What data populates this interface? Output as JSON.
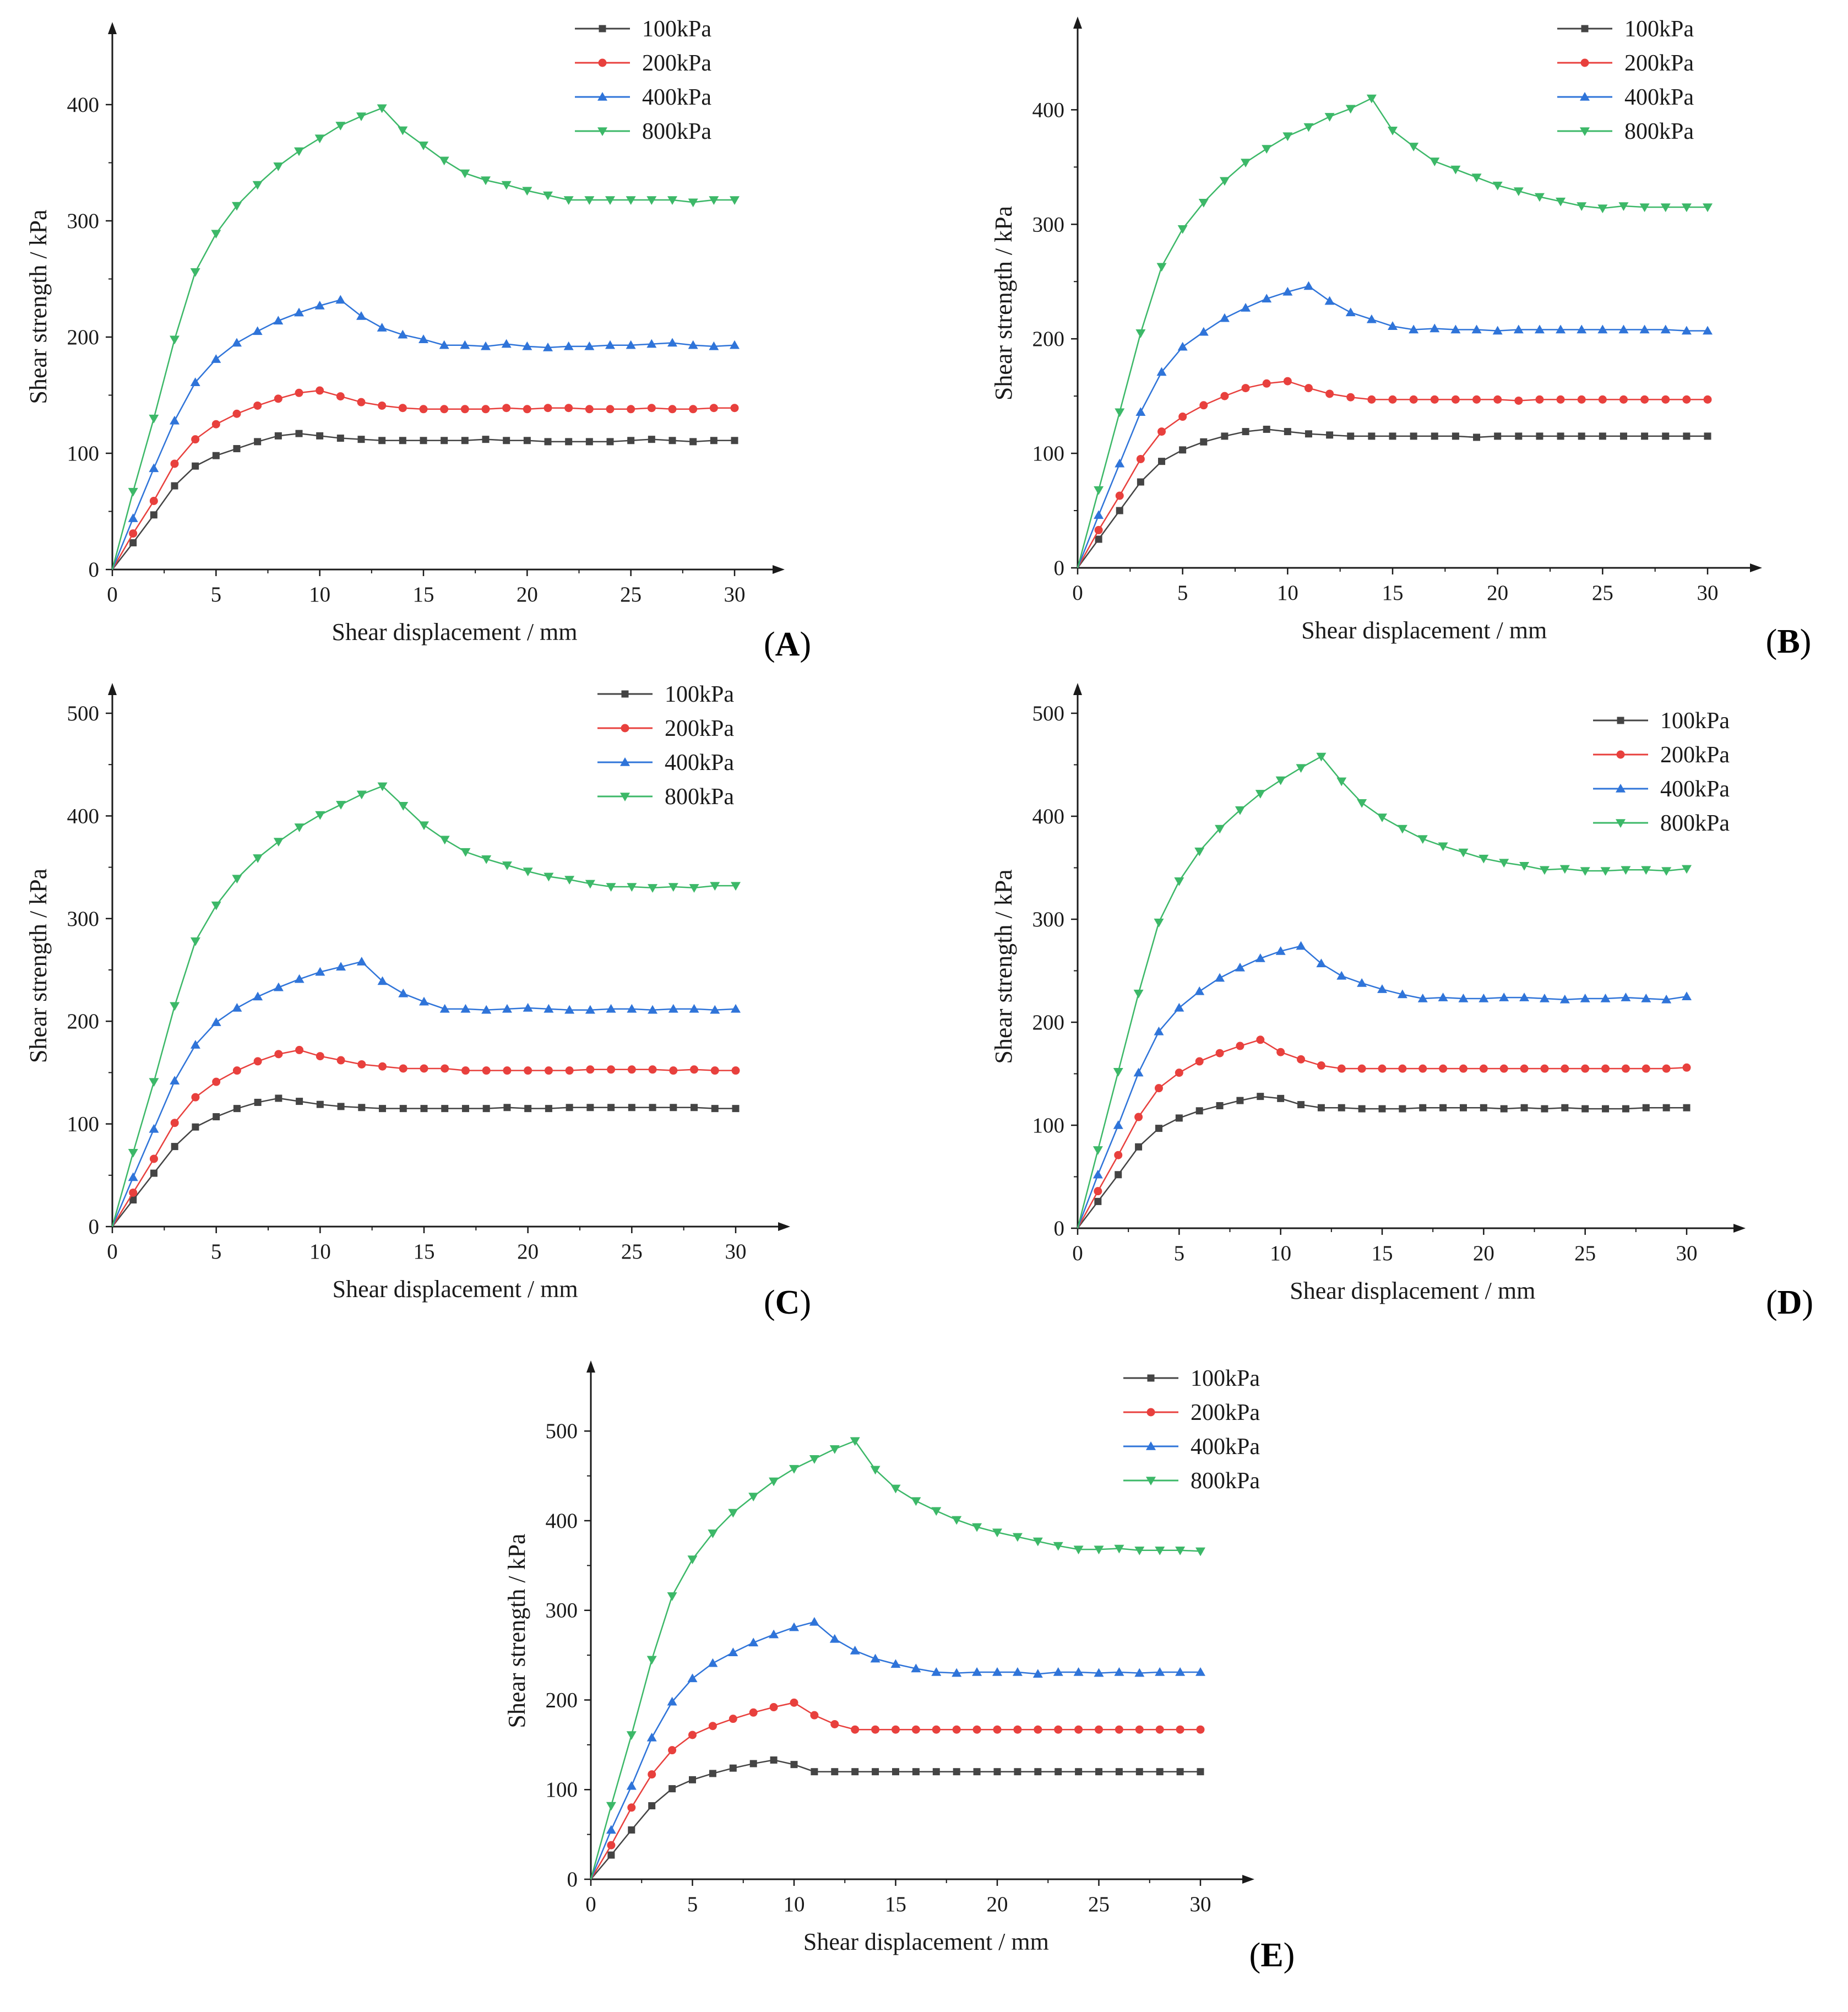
{
  "figure": {
    "series_colors": [
      "#444444",
      "#e8403d",
      "#2f74d9",
      "#3cb868"
    ],
    "series_markers": [
      "square",
      "circle",
      "triangle-up",
      "triangle-down"
    ]
  },
  "chart_data": [
    {
      "id": "A",
      "panel_label": "A",
      "type": "line",
      "xlabel": "Shear displacement / mm",
      "ylabel": "Shear strength / kPa",
      "xlim": [
        0,
        32
      ],
      "ylim": [
        0,
        445
      ],
      "xticks": [
        0,
        5,
        10,
        15,
        20,
        25,
        30
      ],
      "yticks": [
        0,
        100,
        200,
        300,
        400
      ],
      "legend_position": "top-right",
      "x": [
        0,
        1,
        2,
        3,
        4,
        5,
        6,
        7,
        8,
        9,
        10,
        11,
        12,
        13,
        14,
        15,
        16,
        17,
        18,
        19,
        20,
        21,
        22,
        23,
        24,
        25,
        26,
        27,
        28,
        29,
        30
      ],
      "series": [
        {
          "name": "100kPa",
          "values": [
            0,
            23,
            47,
            72,
            89,
            98,
            104,
            110,
            115,
            117,
            115,
            113,
            112,
            111,
            111,
            111,
            111,
            111,
            112,
            111,
            111,
            110,
            110,
            110,
            110,
            111,
            112,
            111,
            110,
            111,
            111
          ]
        },
        {
          "name": "200kPa",
          "values": [
            0,
            31,
            59,
            91,
            112,
            125,
            134,
            141,
            147,
            152,
            154,
            149,
            144,
            141,
            139,
            138,
            138,
            138,
            138,
            139,
            138,
            139,
            139,
            138,
            138,
            138,
            139,
            138,
            138,
            139,
            139
          ]
        },
        {
          "name": "400kPa",
          "values": [
            0,
            44,
            87,
            128,
            161,
            181,
            195,
            205,
            214,
            221,
            227,
            232,
            218,
            208,
            202,
            198,
            193,
            193,
            192,
            194,
            192,
            191,
            192,
            192,
            193,
            193,
            194,
            195,
            193,
            192,
            193
          ]
        },
        {
          "name": "800kPa",
          "values": [
            0,
            67,
            130,
            198,
            256,
            289,
            313,
            331,
            347,
            360,
            371,
            382,
            390,
            397,
            378,
            365,
            352,
            341,
            335,
            331,
            326,
            322,
            318,
            318,
            318,
            318,
            318,
            318,
            316,
            318,
            318
          ]
        }
      ]
    },
    {
      "id": "B",
      "panel_label": "B",
      "type": "line",
      "xlabel": "Shear displacement / mm",
      "ylabel": "Shear strength / kPa",
      "xlim": [
        0,
        32
      ],
      "ylim": [
        0,
        455
      ],
      "xticks": [
        0,
        5,
        10,
        15,
        20,
        25,
        30
      ],
      "yticks": [
        0,
        100,
        200,
        300,
        400
      ],
      "legend_position": "top-right",
      "x": [
        0,
        1,
        2,
        3,
        4,
        5,
        6,
        7,
        8,
        9,
        10,
        11,
        12,
        13,
        14,
        15,
        16,
        17,
        18,
        19,
        20,
        21,
        22,
        23,
        24,
        25,
        26,
        27,
        28,
        29,
        30
      ],
      "series": [
        {
          "name": "100kPa",
          "values": [
            0,
            25,
            50,
            75,
            93,
            103,
            110,
            115,
            119,
            121,
            119,
            117,
            116,
            115,
            115,
            115,
            115,
            115,
            115,
            114,
            115,
            115,
            115,
            115,
            115,
            115,
            115,
            115,
            115,
            115,
            115
          ]
        },
        {
          "name": "200kPa",
          "values": [
            0,
            33,
            63,
            95,
            119,
            132,
            142,
            150,
            157,
            161,
            163,
            157,
            152,
            149,
            147,
            147,
            147,
            147,
            147,
            147,
            147,
            146,
            147,
            147,
            147,
            147,
            147,
            147,
            147,
            147,
            147
          ]
        },
        {
          "name": "400kPa",
          "values": [
            0,
            46,
            91,
            136,
            171,
            193,
            206,
            218,
            227,
            235,
            241,
            246,
            233,
            223,
            217,
            211,
            208,
            209,
            208,
            208,
            207,
            208,
            208,
            208,
            208,
            208,
            208,
            208,
            208,
            207,
            207
          ]
        },
        {
          "name": "800kPa",
          "values": [
            0,
            68,
            136,
            205,
            263,
            296,
            319,
            338,
            354,
            366,
            377,
            385,
            394,
            401,
            410,
            382,
            368,
            355,
            348,
            341,
            334,
            329,
            324,
            320,
            316,
            314,
            316,
            315,
            315,
            315,
            315
          ]
        }
      ]
    },
    {
      "id": "C",
      "panel_label": "C",
      "type": "line",
      "xlabel": "Shear displacement / mm",
      "ylabel": "Shear strength / kPa",
      "xlim": [
        0,
        32
      ],
      "ylim": [
        0,
        500
      ],
      "xticks": [
        0,
        5,
        10,
        15,
        20,
        25,
        30
      ],
      "yticks": [
        0,
        100,
        200,
        300,
        400,
        500
      ],
      "legend_position": "top-right",
      "x": [
        0,
        1,
        2,
        3,
        4,
        5,
        6,
        7,
        8,
        9,
        10,
        11,
        12,
        13,
        14,
        15,
        16,
        17,
        18,
        19,
        20,
        21,
        22,
        23,
        24,
        25,
        26,
        27,
        28,
        29,
        30
      ],
      "series": [
        {
          "name": "100kPa",
          "values": [
            0,
            26,
            52,
            78,
            97,
            107,
            115,
            121,
            125,
            122,
            119,
            117,
            116,
            115,
            115,
            115,
            115,
            115,
            115,
            116,
            115,
            115,
            116,
            116,
            116,
            116,
            116,
            116,
            116,
            115,
            115
          ]
        },
        {
          "name": "200kPa",
          "values": [
            0,
            33,
            66,
            101,
            126,
            141,
            152,
            161,
            168,
            172,
            166,
            162,
            158,
            156,
            154,
            154,
            154,
            152,
            152,
            152,
            152,
            152,
            152,
            153,
            153,
            153,
            153,
            152,
            153,
            152,
            152
          ]
        },
        {
          "name": "400kPa",
          "values": [
            0,
            48,
            95,
            142,
            177,
            199,
            213,
            224,
            233,
            241,
            248,
            253,
            258,
            239,
            227,
            219,
            212,
            212,
            211,
            212,
            213,
            212,
            211,
            211,
            212,
            212,
            211,
            212,
            212,
            211,
            212
          ]
        },
        {
          "name": "800kPa",
          "values": [
            0,
            72,
            141,
            215,
            278,
            313,
            339,
            359,
            375,
            389,
            401,
            411,
            421,
            429,
            410,
            391,
            377,
            365,
            358,
            352,
            346,
            341,
            338,
            334,
            331,
            331,
            330,
            331,
            330,
            332,
            332
          ]
        }
      ]
    },
    {
      "id": "D",
      "panel_label": "D",
      "type": "line",
      "xlabel": "Shear displacement / mm",
      "ylabel": "Shear strength / kPa",
      "xlim": [
        0,
        32
      ],
      "ylim": [
        0,
        500
      ],
      "xticks": [
        0,
        5,
        10,
        15,
        20,
        25,
        30
      ],
      "yticks": [
        0,
        100,
        200,
        300,
        400,
        500
      ],
      "legend_position": "top-right",
      "x": [
        0,
        1,
        2,
        3,
        4,
        5,
        6,
        7,
        8,
        9,
        10,
        11,
        12,
        13,
        14,
        15,
        16,
        17,
        18,
        19,
        20,
        21,
        22,
        23,
        24,
        25,
        26,
        27,
        28,
        29,
        30
      ],
      "series": [
        {
          "name": "100kPa",
          "values": [
            0,
            26,
            52,
            79,
            97,
            107,
            114,
            119,
            124,
            128,
            126,
            120,
            117,
            117,
            116,
            116,
            116,
            117,
            117,
            117,
            117,
            116,
            117,
            116,
            117,
            116,
            116,
            116,
            117,
            117,
            117
          ]
        },
        {
          "name": "200kPa",
          "values": [
            0,
            36,
            71,
            108,
            136,
            151,
            162,
            170,
            177,
            183,
            171,
            164,
            158,
            155,
            155,
            155,
            155,
            155,
            155,
            155,
            155,
            155,
            155,
            155,
            155,
            155,
            155,
            155,
            155,
            155,
            156
          ]
        },
        {
          "name": "400kPa",
          "values": [
            0,
            52,
            100,
            151,
            191,
            214,
            230,
            243,
            253,
            262,
            269,
            274,
            257,
            245,
            238,
            232,
            227,
            223,
            224,
            223,
            223,
            224,
            224,
            223,
            222,
            223,
            223,
            224,
            223,
            222,
            225
          ]
        },
        {
          "name": "800kPa",
          "values": [
            0,
            76,
            152,
            228,
            297,
            337,
            366,
            388,
            406,
            422,
            435,
            447,
            458,
            434,
            413,
            399,
            388,
            378,
            371,
            365,
            359,
            355,
            352,
            348,
            349,
            347,
            347,
            348,
            348,
            347,
            349
          ]
        }
      ]
    },
    {
      "id": "E",
      "panel_label": "E",
      "type": "line",
      "xlabel": "Shear displacement / mm",
      "ylabel": "Shear strength / kPa",
      "xlim": [
        0,
        32
      ],
      "ylim": [
        0,
        545
      ],
      "xticks": [
        0,
        5,
        10,
        15,
        20,
        25,
        30
      ],
      "yticks": [
        0,
        100,
        200,
        300,
        400,
        500
      ],
      "legend_position": "top-right",
      "x": [
        0,
        1,
        2,
        3,
        4,
        5,
        6,
        7,
        8,
        9,
        10,
        11,
        12,
        13,
        14,
        15,
        16,
        17,
        18,
        19,
        20,
        21,
        22,
        23,
        24,
        25,
        26,
        27,
        28,
        29,
        30
      ],
      "series": [
        {
          "name": "100kPa",
          "values": [
            0,
            27,
            55,
            82,
            101,
            111,
            118,
            124,
            129,
            133,
            128,
            120,
            120,
            120,
            120,
            120,
            120,
            120,
            120,
            120,
            120,
            120,
            120,
            120,
            120,
            120,
            120,
            120,
            120,
            120,
            120
          ]
        },
        {
          "name": "200kPa",
          "values": [
            0,
            38,
            80,
            117,
            144,
            161,
            171,
            179,
            186,
            192,
            197,
            183,
            173,
            167,
            167,
            167,
            167,
            167,
            167,
            167,
            167,
            167,
            167,
            167,
            167,
            167,
            167,
            167,
            167,
            167,
            167
          ]
        },
        {
          "name": "400kPa",
          "values": [
            0,
            55,
            104,
            158,
            198,
            224,
            241,
            253,
            264,
            273,
            281,
            287,
            268,
            255,
            246,
            240,
            235,
            231,
            230,
            231,
            231,
            231,
            229,
            231,
            231,
            230,
            231,
            230,
            231,
            231,
            231
          ]
        },
        {
          "name": "800kPa",
          "values": [
            0,
            82,
            161,
            245,
            316,
            357,
            386,
            409,
            427,
            444,
            458,
            469,
            480,
            489,
            457,
            436,
            422,
            411,
            401,
            393,
            387,
            382,
            377,
            372,
            368,
            368,
            369,
            367,
            367,
            367,
            366
          ]
        }
      ]
    }
  ]
}
